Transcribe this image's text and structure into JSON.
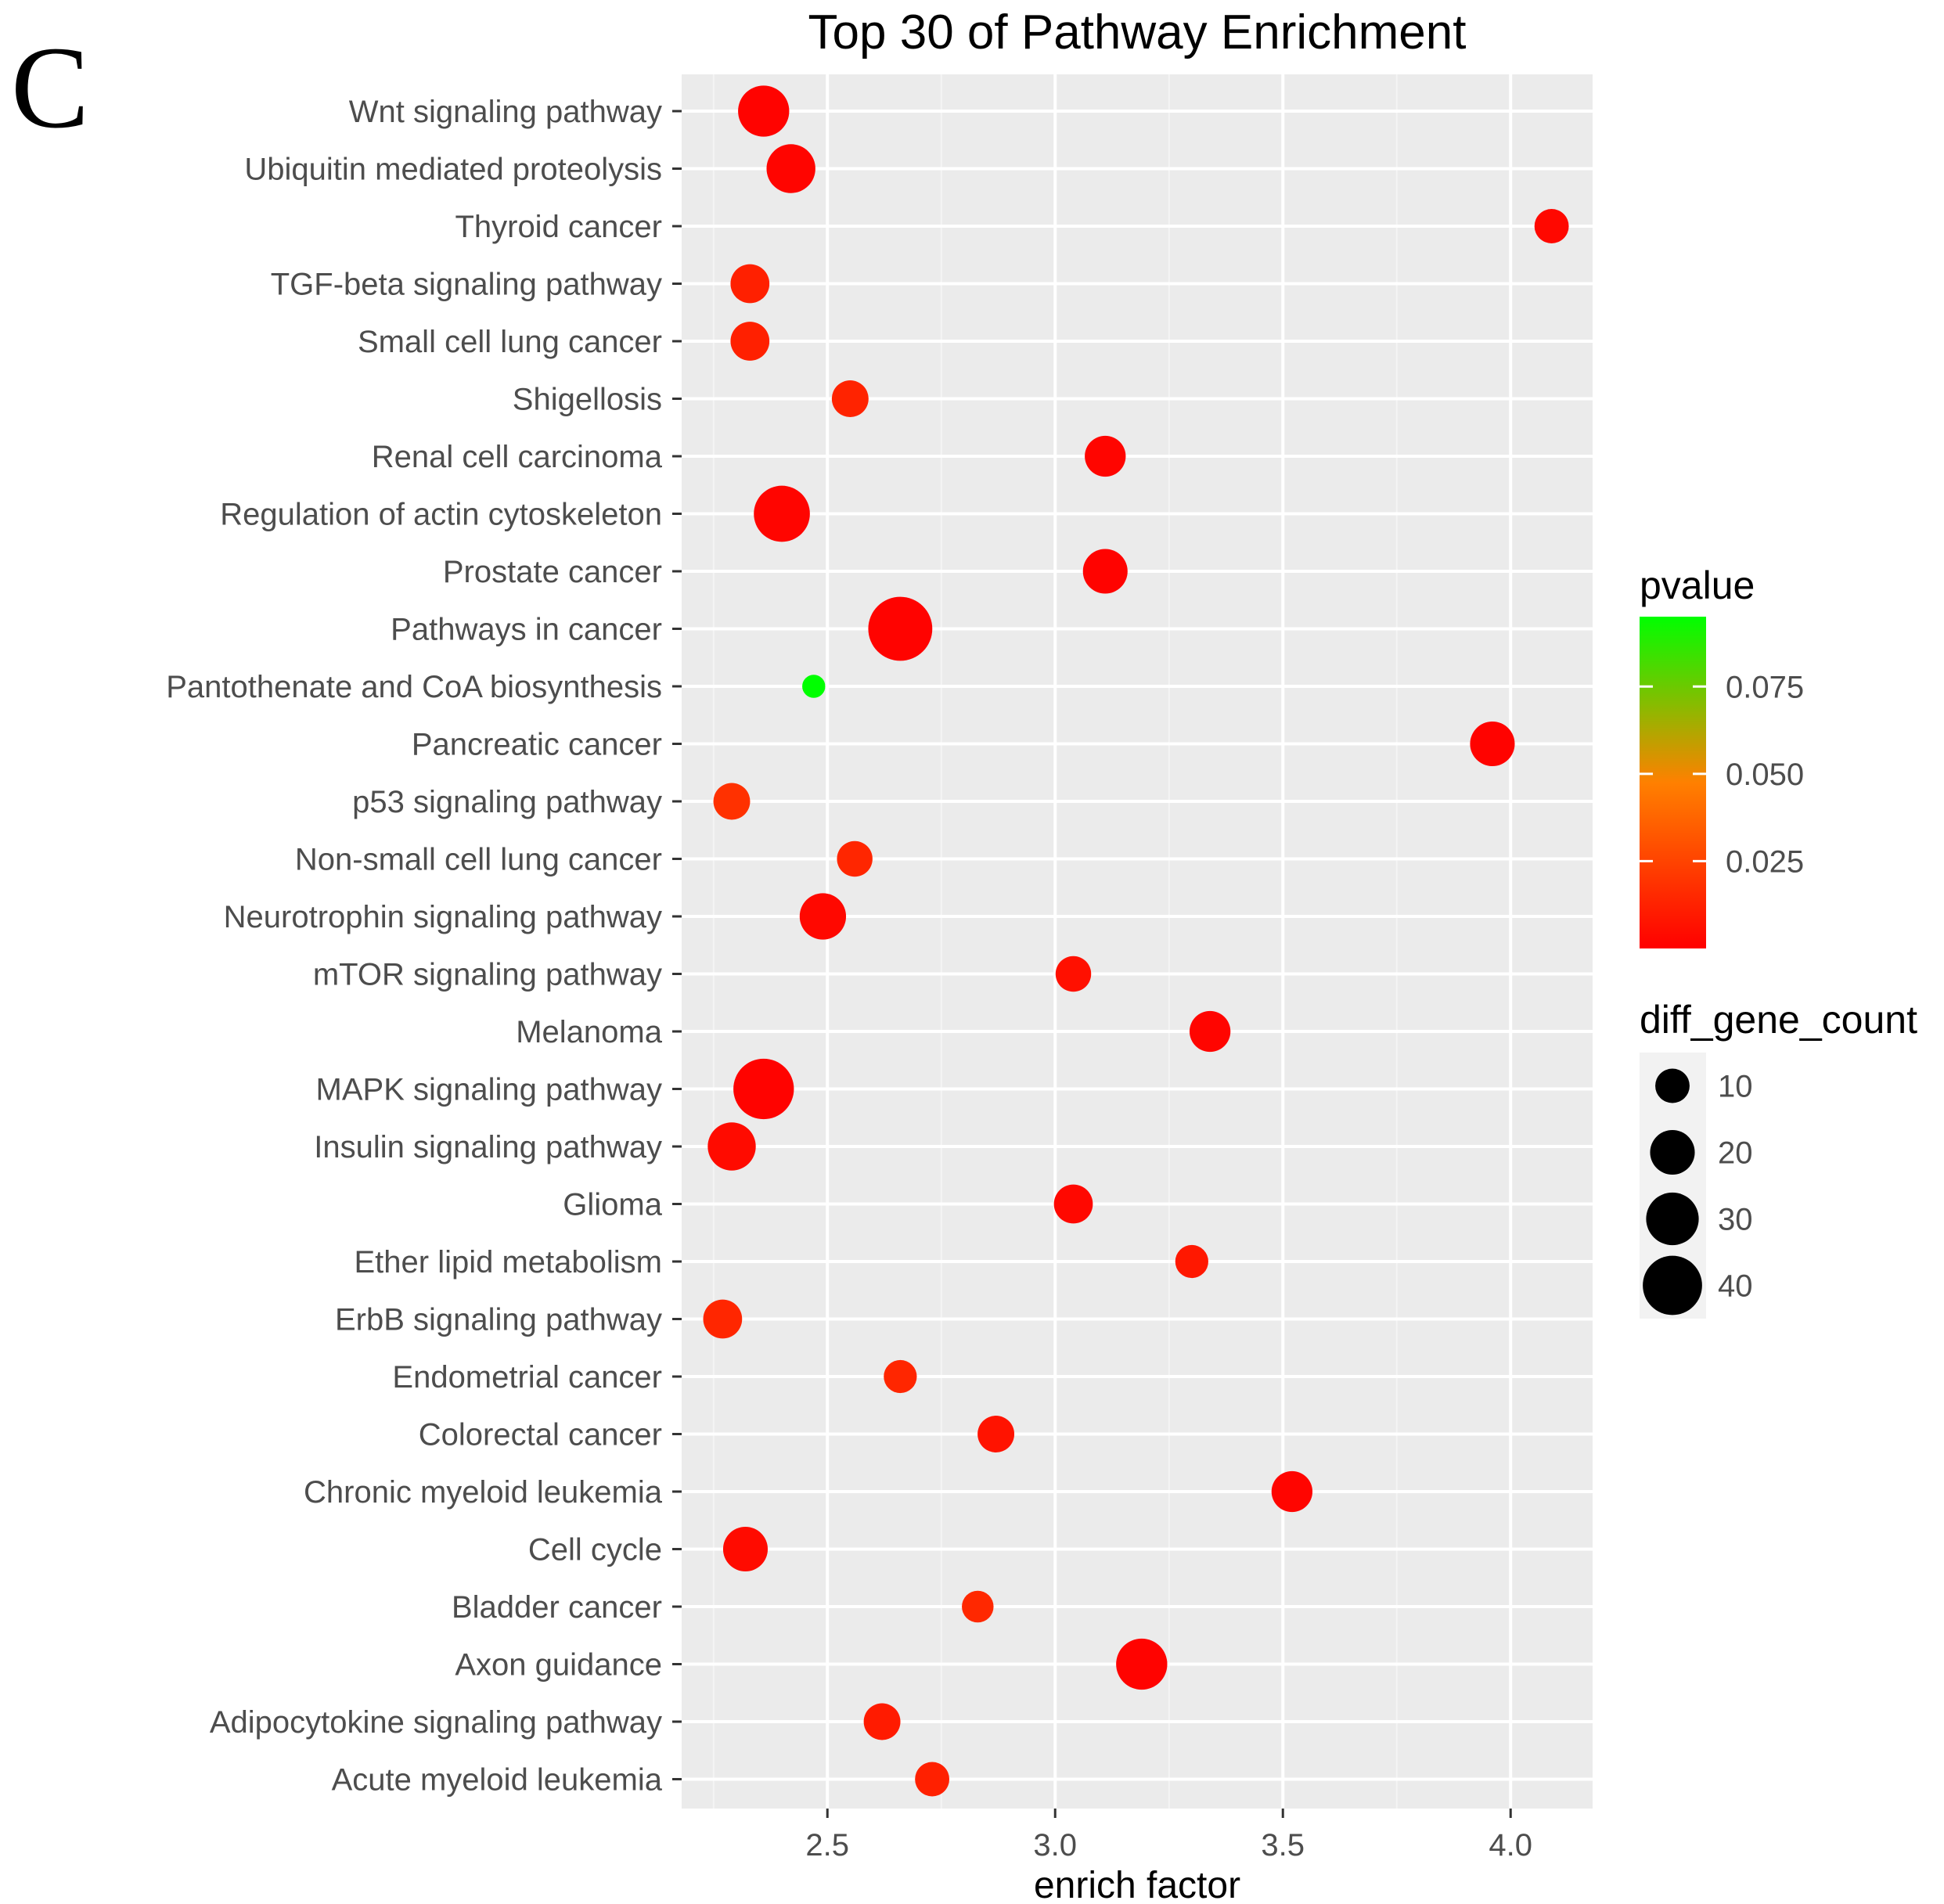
{
  "panel_label": "C",
  "chart_data": {
    "type": "scatter",
    "title": "Top 30 of Pathway Enrichment",
    "xlabel": "enrich factor",
    "ylabel": "",
    "xlim": [
      2.18,
      4.18
    ],
    "x_ticks": [
      2.5,
      3.0,
      3.5,
      4.0
    ],
    "x_tick_labels": [
      "2.5",
      "3.0",
      "3.5",
      "4.0"
    ],
    "grid": true,
    "points": [
      {
        "pathway": "Wnt signaling pathway",
        "enrich_factor": 2.36,
        "diff_gene_count": 28,
        "pvalue": 0.001
      },
      {
        "pathway": "Ubiquitin mediated proteolysis",
        "enrich_factor": 2.42,
        "diff_gene_count": 25,
        "pvalue": 0.002
      },
      {
        "pathway": "Thyroid cancer",
        "enrich_factor": 4.09,
        "diff_gene_count": 10,
        "pvalue": 0.003
      },
      {
        "pathway": "TGF-beta signaling pathway",
        "enrich_factor": 2.33,
        "diff_gene_count": 14,
        "pvalue": 0.012
      },
      {
        "pathway": "Small cell lung cancer",
        "enrich_factor": 2.33,
        "diff_gene_count": 14,
        "pvalue": 0.012
      },
      {
        "pathway": "Shigellosis",
        "enrich_factor": 2.55,
        "diff_gene_count": 12,
        "pvalue": 0.013
      },
      {
        "pathway": "Renal cell carcinoma",
        "enrich_factor": 3.11,
        "diff_gene_count": 16,
        "pvalue": 0.002
      },
      {
        "pathway": "Regulation of actin cytoskeleton",
        "enrich_factor": 2.4,
        "diff_gene_count": 35,
        "pvalue": 0.002
      },
      {
        "pathway": "Prostate cancer",
        "enrich_factor": 3.11,
        "diff_gene_count": 20,
        "pvalue": 0.001
      },
      {
        "pathway": "Pathways in cancer",
        "enrich_factor": 2.66,
        "diff_gene_count": 48,
        "pvalue": 0.001
      },
      {
        "pathway": "Pantothenate and CoA biosynthesis",
        "enrich_factor": 2.47,
        "diff_gene_count": 3,
        "pvalue": 0.095
      },
      {
        "pathway": "Pancreatic cancer",
        "enrich_factor": 3.96,
        "diff_gene_count": 20,
        "pvalue": 0.001
      },
      {
        "pathway": "p53 signaling pathway",
        "enrich_factor": 2.29,
        "diff_gene_count": 12,
        "pvalue": 0.018
      },
      {
        "pathway": "Non-small cell lung cancer",
        "enrich_factor": 2.56,
        "diff_gene_count": 11,
        "pvalue": 0.014
      },
      {
        "pathway": "Neurotrophin signaling pathway",
        "enrich_factor": 2.49,
        "diff_gene_count": 22,
        "pvalue": 0.003
      },
      {
        "pathway": "mTOR signaling pathway",
        "enrich_factor": 3.04,
        "diff_gene_count": 11,
        "pvalue": 0.006
      },
      {
        "pathway": "Melanoma",
        "enrich_factor": 3.34,
        "diff_gene_count": 16,
        "pvalue": 0.002
      },
      {
        "pathway": "MAPK signaling pathway",
        "enrich_factor": 2.36,
        "diff_gene_count": 42,
        "pvalue": 0.001
      },
      {
        "pathway": "Insulin signaling pathway",
        "enrich_factor": 2.29,
        "diff_gene_count": 24,
        "pvalue": 0.004
      },
      {
        "pathway": "Glioma",
        "enrich_factor": 3.04,
        "diff_gene_count": 14,
        "pvalue": 0.003
      },
      {
        "pathway": "Ether lipid metabolism",
        "enrich_factor": 3.3,
        "diff_gene_count": 9,
        "pvalue": 0.009
      },
      {
        "pathway": "ErbB signaling pathway",
        "enrich_factor": 2.27,
        "diff_gene_count": 14,
        "pvalue": 0.014
      },
      {
        "pathway": "Endometrial cancer",
        "enrich_factor": 2.66,
        "diff_gene_count": 9,
        "pvalue": 0.014
      },
      {
        "pathway": "Colorectal cancer",
        "enrich_factor": 2.87,
        "diff_gene_count": 12,
        "pvalue": 0.007
      },
      {
        "pathway": "Chronic myeloid leukemia",
        "enrich_factor": 3.52,
        "diff_gene_count": 16,
        "pvalue": 0.002
      },
      {
        "pathway": "Cell cycle",
        "enrich_factor": 2.32,
        "diff_gene_count": 20,
        "pvalue": 0.004
      },
      {
        "pathway": "Bladder cancer",
        "enrich_factor": 2.83,
        "diff_gene_count": 8,
        "pvalue": 0.015
      },
      {
        "pathway": "Axon guidance",
        "enrich_factor": 3.19,
        "diff_gene_count": 28,
        "pvalue": 0.001
      },
      {
        "pathway": "Adipocytokine signaling pathway",
        "enrich_factor": 2.62,
        "diff_gene_count": 12,
        "pvalue": 0.01
      },
      {
        "pathway": "Acute myeloid leukemia",
        "enrich_factor": 2.73,
        "diff_gene_count": 10,
        "pvalue": 0.012
      }
    ],
    "legend_color": {
      "title": "pvalue",
      "range": [
        0.0,
        0.095
      ],
      "ticks": [
        0.025,
        0.05,
        0.075
      ],
      "tick_labels": [
        "0.025",
        "0.050",
        "0.075"
      ],
      "low_color": "#ff0000",
      "mid_color": "#ff8000",
      "high_color": "#00ff00",
      "placement": "right"
    },
    "legend_size": {
      "title": "diff_gene_count",
      "values": [
        10,
        20,
        30,
        40
      ],
      "labels": [
        "10",
        "20",
        "30",
        "40"
      ],
      "placement": "right"
    },
    "colors": {
      "panel_background": "#ebebeb",
      "grid_major": "#ffffff",
      "grid_minor": "#f4f4f4",
      "axis_text": "#4d4d4d",
      "tick": "#333333"
    }
  }
}
